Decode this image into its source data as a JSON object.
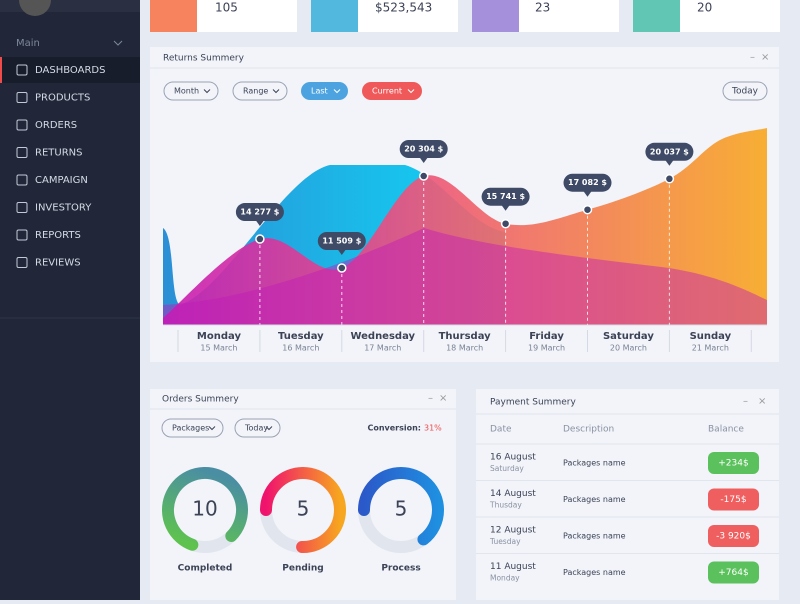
{
  "sidebar": {
    "section": "Main",
    "items": [
      "DASHBOARDS",
      "PRODUCTS",
      "ORDERS",
      "RETURNS",
      "CAMPAIGN",
      "INVESTORY",
      "REPORTS",
      "REVIEWS"
    ]
  },
  "stats": [
    "105",
    "$523,543",
    "23",
    "20"
  ],
  "returns": {
    "title": "Returns Summery",
    "filters": [
      "Month",
      "Range",
      "Last",
      "Current"
    ],
    "today": "Today",
    "days": [
      "Monday",
      "Tuesday",
      "Wednesday",
      "Thursday",
      "Friday",
      "Saturday",
      "Sunday"
    ],
    "dates": [
      "15 March",
      "16 March",
      "17 March",
      "18 March",
      "19 March",
      "20 March",
      "21 March"
    ],
    "points": {
      "values": [
        14277,
        11509,
        20304,
        15741,
        17082,
        20037
      ],
      "value_labels": [
        "14 277 $",
        "11 509 $",
        "20 304 $",
        "15 741 $",
        "17 082 $",
        "20 037 $"
      ]
    }
  },
  "orders": {
    "title": "Orders Summery",
    "filters": [
      "Packages",
      "Today"
    ],
    "conversion_label": "Conversion:",
    "conversion": "31%",
    "donuts": [
      {
        "value": 10,
        "label": "Completed"
      },
      {
        "value": 5,
        "label": "Pending"
      },
      {
        "value": 5,
        "label": "Process"
      }
    ]
  },
  "payments": {
    "title": "Payment Summery",
    "columns": [
      "Date",
      "Description",
      "Balance"
    ],
    "rows": [
      {
        "date": "16 August",
        "weekday": "Saturday",
        "description": "Packages name",
        "balance": "+234$"
      },
      {
        "date": "14 August",
        "weekday": "Thusday",
        "description": "Packages name",
        "balance": "-175$"
      },
      {
        "date": "12 August",
        "weekday": "Tuesday",
        "description": "Packages name",
        "balance": "-3 920$"
      },
      {
        "date": "11 August",
        "weekday": "Monday",
        "description": "Packages name",
        "balance": "+764$"
      }
    ]
  }
}
